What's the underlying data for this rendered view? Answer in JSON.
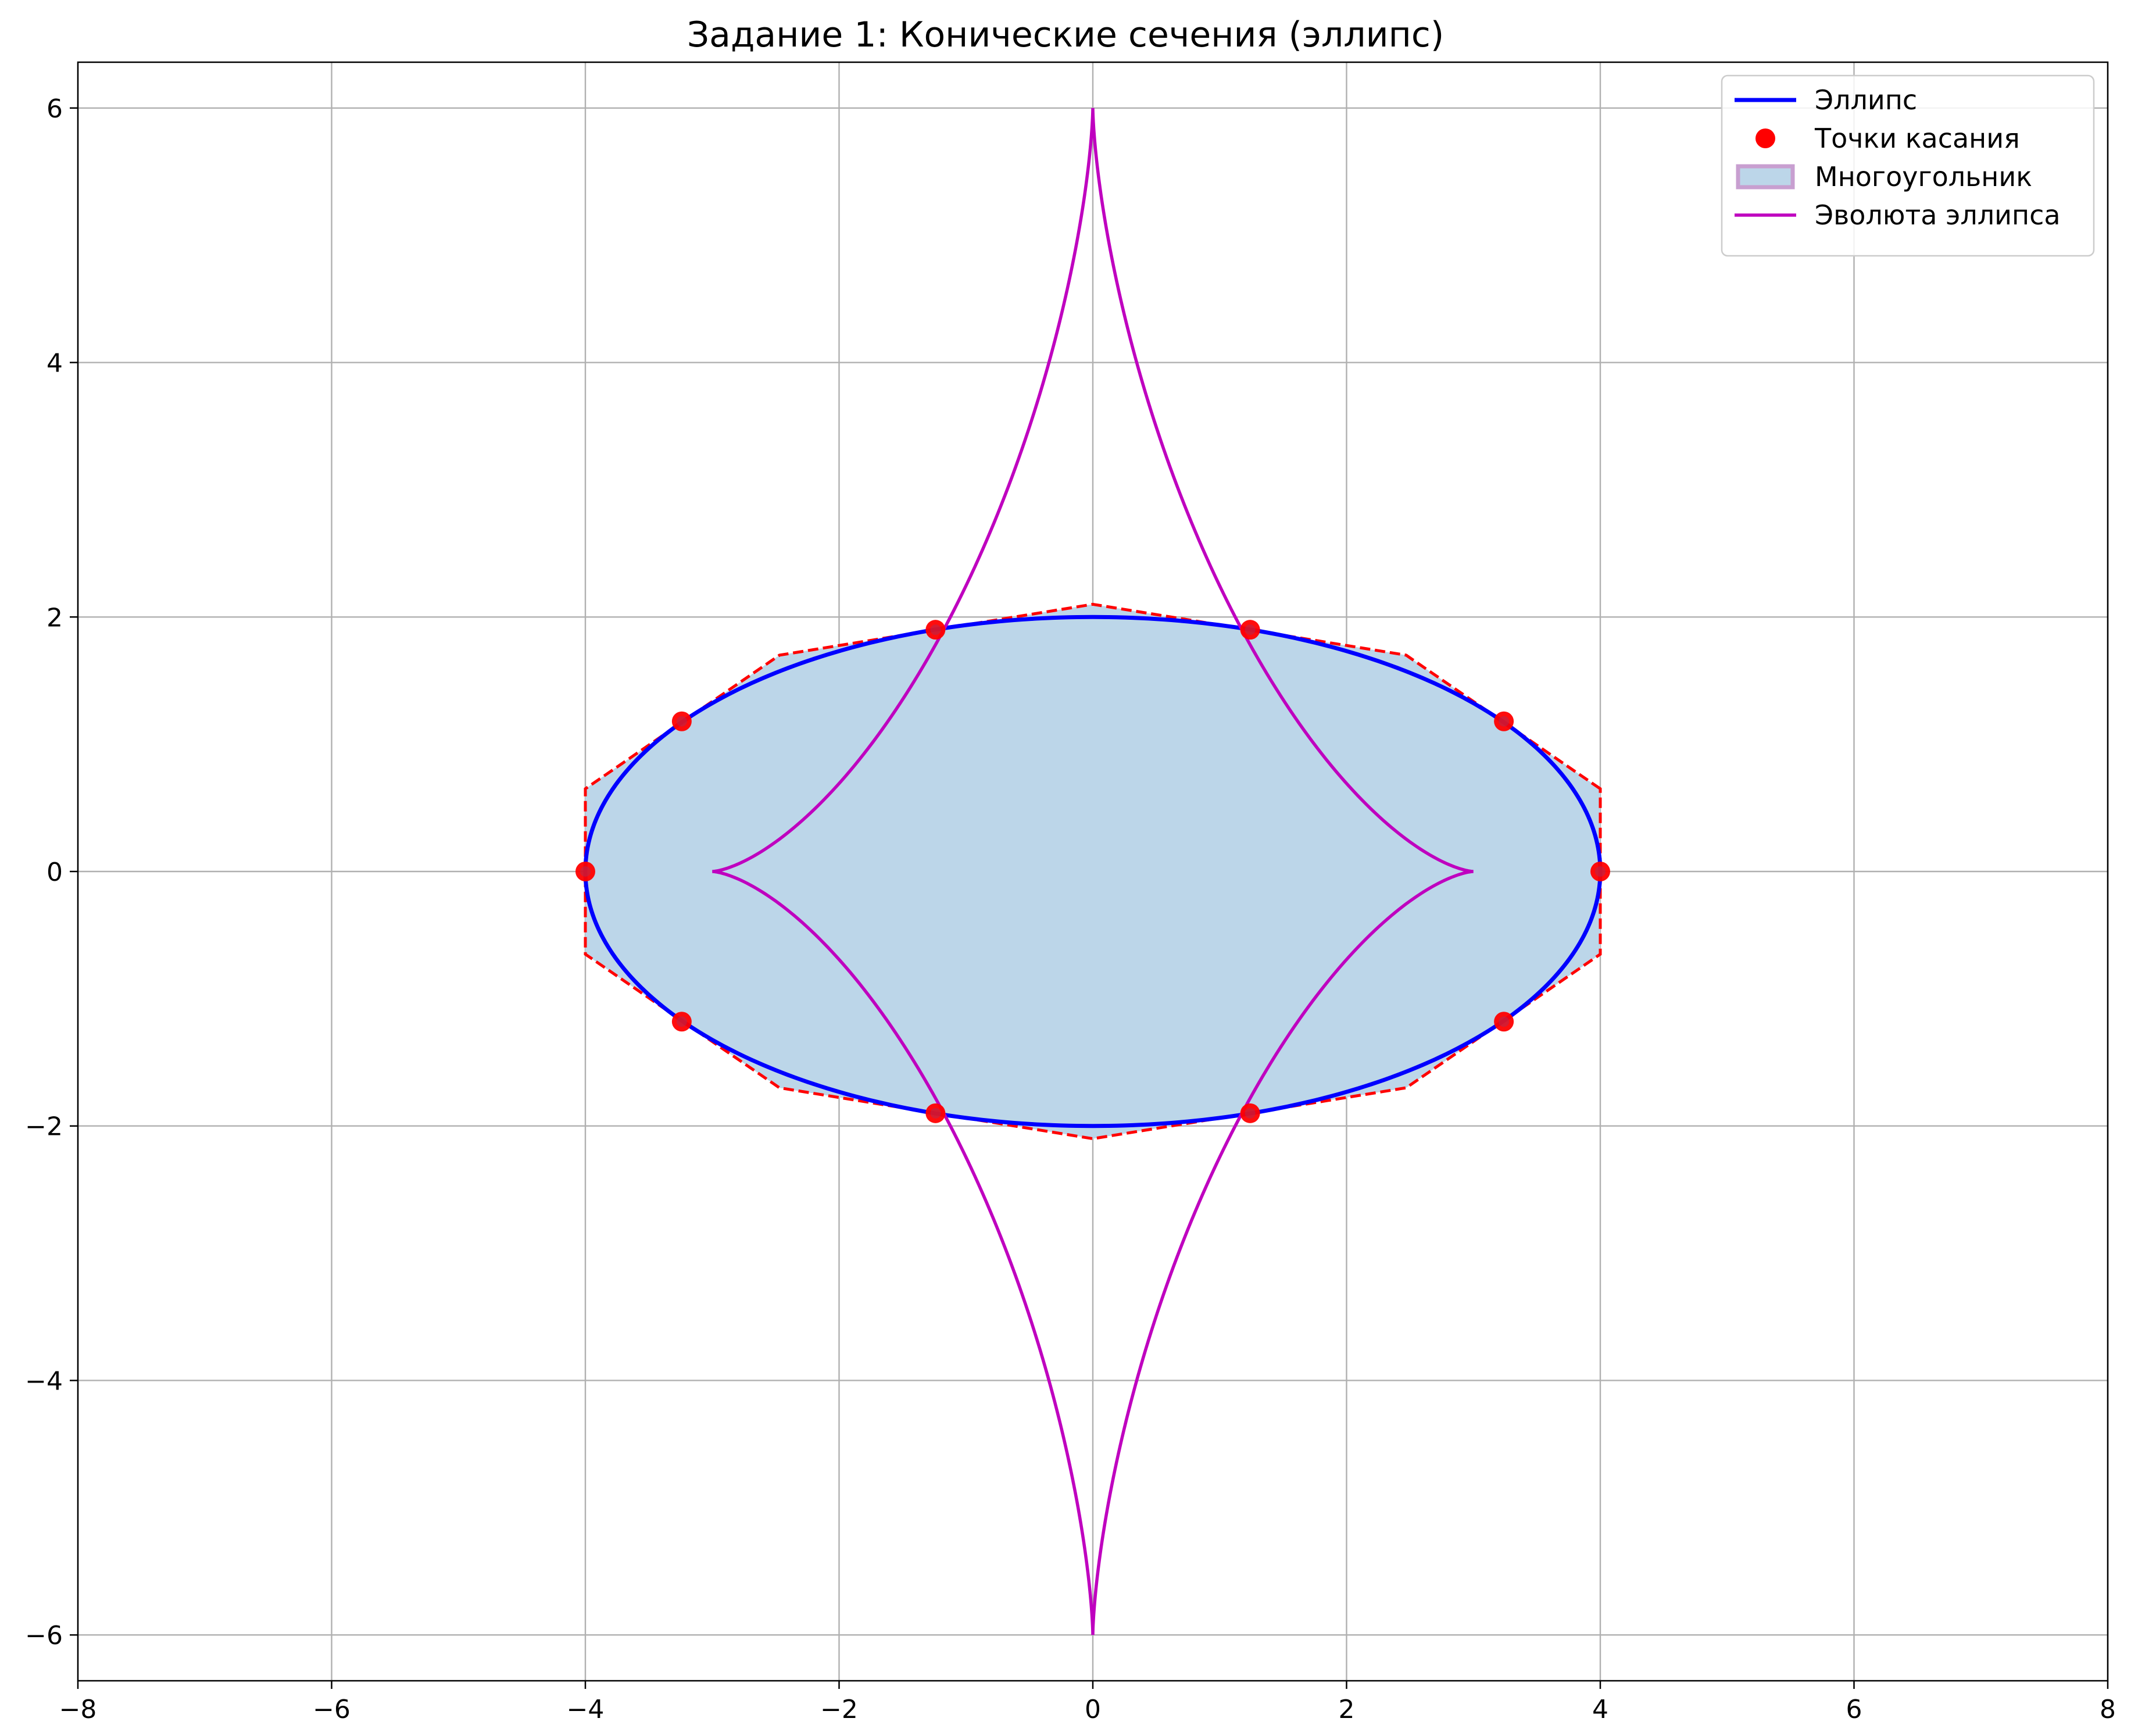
{
  "chart_data": {
    "type": "line",
    "title": "Задание 1: Конические сечения (эллипс)",
    "xlabel": "",
    "ylabel": "",
    "xlim": [
      -8,
      8
    ],
    "ylim": [
      -6.36,
      6.36
    ],
    "xticks": [
      -8,
      -6,
      -4,
      -2,
      0,
      2,
      4,
      6,
      8
    ],
    "yticks": [
      -6,
      -4,
      -2,
      0,
      2,
      4,
      6
    ],
    "grid": true,
    "legend_position": "upper-right",
    "legend": [
      {
        "label": "Эллипс",
        "kind": "line",
        "color": "#0000ff"
      },
      {
        "label": "Точки касания",
        "kind": "marker",
        "color": "#ff0000"
      },
      {
        "label": "Многоугольник",
        "kind": "patch",
        "color": "#bcd6e9"
      },
      {
        "label": "Эволюта эллипса",
        "kind": "line",
        "color": "#bf00bf"
      }
    ],
    "ellipse": {
      "a": 4,
      "b": 2,
      "center": [
        0,
        0
      ],
      "color": "#0000ff"
    },
    "evolute": {
      "x_extent": 3,
      "y_extent": 6,
      "color": "#bf00bf"
    },
    "tangent_points": [
      {
        "x": 4.0,
        "y": 0.0
      },
      {
        "x": 3.24,
        "y": 1.18
      },
      {
        "x": 1.24,
        "y": 1.9
      },
      {
        "x": -1.24,
        "y": 1.9
      },
      {
        "x": -3.24,
        "y": 1.18
      },
      {
        "x": -4.0,
        "y": 0.0
      },
      {
        "x": -3.24,
        "y": -1.18
      },
      {
        "x": -1.24,
        "y": -1.9
      },
      {
        "x": 1.24,
        "y": -1.9
      },
      {
        "x": 3.24,
        "y": -1.18
      }
    ],
    "polygon": [
      {
        "x": 4.0,
        "y": 0.65
      },
      {
        "x": 2.47,
        "y": 1.7
      },
      {
        "x": 0.0,
        "y": 2.1
      },
      {
        "x": -2.47,
        "y": 1.7
      },
      {
        "x": -4.0,
        "y": 0.65
      },
      {
        "x": -4.0,
        "y": -0.65
      },
      {
        "x": -2.47,
        "y": -1.7
      },
      {
        "x": 0.0,
        "y": -2.1
      },
      {
        "x": 2.47,
        "y": -1.7
      },
      {
        "x": 4.0,
        "y": -0.65
      }
    ],
    "polygon_fill": "#bcd6e9",
    "polygon_edge": "#ff0000",
    "point_color": "#ff0000"
  }
}
